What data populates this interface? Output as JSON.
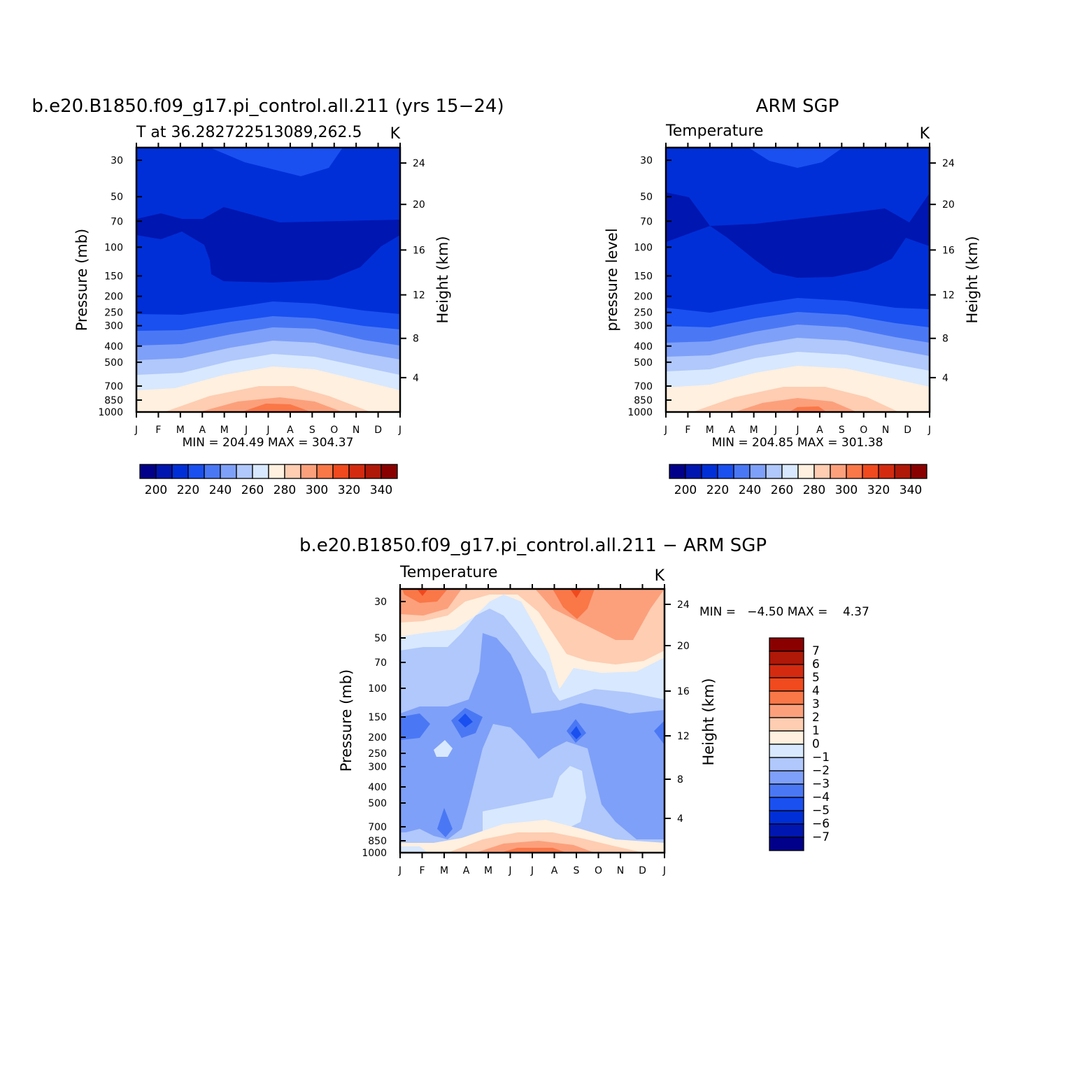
{
  "colors": {
    "fill_levels": [
      "#00008a",
      "#0016b0",
      "#002fd8",
      "#1a50f0",
      "#4a78f5",
      "#7fa0f8",
      "#b0c8fb",
      "#d8e8fe",
      "#fff0df",
      "#fecdb2",
      "#fca07c",
      "#fa7748",
      "#f04a1e",
      "#d42b10",
      "#b01808",
      "#8a0000"
    ]
  },
  "panels": [
    {
      "id": "model",
      "title": "b.e20.B1850.f09_g17.pi_control.all.211 (yrs 15−24)",
      "subtitle_left": "T at 36.282722513089,262.5",
      "subtitle_right": "K",
      "ylabel_left": "Pressure (mb)",
      "ylabel_right": "Height (km)",
      "stats": "MIN = 204.49 MAX = 304.37"
    },
    {
      "id": "obs",
      "title": "ARM SGP",
      "subtitle_left": "Temperature",
      "subtitle_right": "K",
      "ylabel_left": "pressure level",
      "ylabel_right": "Height (km)",
      "stats": "MIN = 204.85 MAX = 301.38"
    },
    {
      "id": "diff",
      "title": "b.e20.B1850.f09_g17.pi_control.all.211 − ARM SGP",
      "subtitle_left": "Temperature",
      "subtitle_right": "K",
      "ylabel_left": "Pressure (mb)",
      "ylabel_right": "Height (km)",
      "stats": "MIN =   −4.50 MAX =    4.37"
    }
  ],
  "chart_data": [
    {
      "type": "heatmap",
      "title": "b.e20.B1850.f09_g17.pi_control.all.211 (yrs 15−24)",
      "subtitle": "T at 36.282722513089,262.5",
      "units": "K",
      "xlabel": "",
      "ylabel": "Pressure (mb)",
      "ylabel_right": "Height (km)",
      "x_ticks": [
        "J",
        "F",
        "M",
        "A",
        "M",
        "J",
        "J",
        "A",
        "S",
        "O",
        "N",
        "D",
        "J"
      ],
      "y_ticks": [
        30,
        50,
        70,
        100,
        150,
        200,
        250,
        300,
        400,
        500,
        700,
        850,
        1000
      ],
      "y_right_ticks": [
        4,
        8,
        12,
        16,
        20,
        24
      ],
      "ylim": [
        20,
        1000
      ],
      "y_scale": "log",
      "y_reversed": true,
      "min": 204.49,
      "max": 304.37,
      "colorbar_labels": [
        200,
        220,
        240,
        260,
        280,
        300,
        320,
        340
      ],
      "colorbar_orientation": "horizontal"
    },
    {
      "type": "heatmap",
      "title": "ARM SGP",
      "subtitle": "Temperature",
      "units": "K",
      "xlabel": "",
      "ylabel": "pressure level",
      "ylabel_right": "Height (km)",
      "x_ticks": [
        "J",
        "F",
        "M",
        "A",
        "M",
        "J",
        "J",
        "A",
        "S",
        "O",
        "N",
        "D",
        "J"
      ],
      "y_ticks": [
        30,
        50,
        70,
        100,
        150,
        200,
        250,
        300,
        400,
        500,
        700,
        850,
        1000
      ],
      "y_right_ticks": [
        4,
        8,
        12,
        16,
        20,
        24
      ],
      "ylim": [
        20,
        1000
      ],
      "y_scale": "log",
      "y_reversed": true,
      "min": 204.85,
      "max": 301.38,
      "colorbar_labels": [
        200,
        220,
        240,
        260,
        280,
        300,
        320,
        340
      ],
      "colorbar_orientation": "horizontal"
    },
    {
      "type": "heatmap",
      "title": "b.e20.B1850.f09_g17.pi_control.all.211 − ARM SGP",
      "subtitle": "Temperature",
      "units": "K",
      "xlabel": "",
      "ylabel": "Pressure (mb)",
      "ylabel_right": "Height (km)",
      "x_ticks": [
        "J",
        "F",
        "M",
        "A",
        "M",
        "J",
        "J",
        "A",
        "S",
        "O",
        "N",
        "D",
        "J"
      ],
      "y_ticks": [
        30,
        50,
        70,
        100,
        150,
        200,
        250,
        300,
        400,
        500,
        700,
        850,
        1000
      ],
      "y_right_ticks": [
        4,
        8,
        12,
        16,
        20,
        24
      ],
      "ylim": [
        20,
        1000
      ],
      "y_scale": "log",
      "y_reversed": true,
      "min": -4.5,
      "max": 4.37,
      "colorbar_labels": [
        7,
        6,
        5,
        4,
        3,
        2,
        1,
        0,
        "−1",
        "−2",
        "−3",
        "−4",
        "−5",
        "−6",
        "−7"
      ],
      "colorbar_orientation": "vertical"
    }
  ]
}
